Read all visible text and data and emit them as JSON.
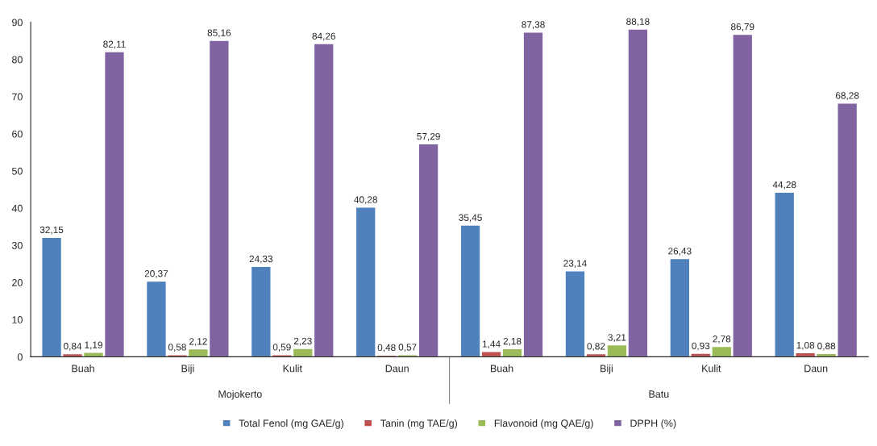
{
  "chart_data": {
    "type": "bar",
    "categories": [
      "Buah",
      "Biji",
      "Kulit",
      "Daun",
      "Buah",
      "Biji",
      "Kulit",
      "Daun"
    ],
    "series": [
      {
        "name": "Total Fenol (mg GAE/g)",
        "color": "#4f81bd",
        "values": [
          32.15,
          20.37,
          24.33,
          40.28,
          35.45,
          23.14,
          26.43,
          44.28
        ],
        "value_labels": [
          "32,15",
          "20,37",
          "24,33",
          "40,28",
          "35,45",
          "23,14",
          "26,43",
          "44,28"
        ]
      },
      {
        "name": "Tanin (mg TAE/g)",
        "color": "#c0504d",
        "values": [
          0.84,
          0.58,
          0.59,
          0.48,
          1.44,
          0.82,
          0.93,
          1.08
        ],
        "value_labels": [
          "0,84",
          "0,58",
          "0,59",
          "0,48",
          "1,44",
          "0,82",
          "0,93",
          "1,08"
        ]
      },
      {
        "name": "Flavonoid (mg QAE/g)",
        "color": "#9bbb59",
        "values": [
          1.19,
          2.12,
          2.23,
          0.57,
          2.18,
          3.21,
          2.78,
          0.88
        ],
        "value_labels": [
          "1,19",
          "2,12",
          "2,23",
          "0,57",
          "2,18",
          "3,21",
          "2,78",
          "0,88"
        ]
      },
      {
        "name": "DPPH (%)",
        "color": "#8064a2",
        "values": [
          82.11,
          85.16,
          84.26,
          57.29,
          87.38,
          88.18,
          86.79,
          68.28
        ],
        "value_labels": [
          "82,11",
          "85,16",
          "84,26",
          "57,29",
          "87,38",
          "88,18",
          "86,79",
          "68,28"
        ]
      }
    ],
    "annotations": [
      "Mojokerto",
      "Batu"
    ],
    "ylim": [
      0,
      90
    ],
    "yticks": [
      0,
      10,
      20,
      30,
      40,
      50,
      60,
      70,
      80,
      90
    ],
    "grid": false,
    "legend": "bottom"
  }
}
